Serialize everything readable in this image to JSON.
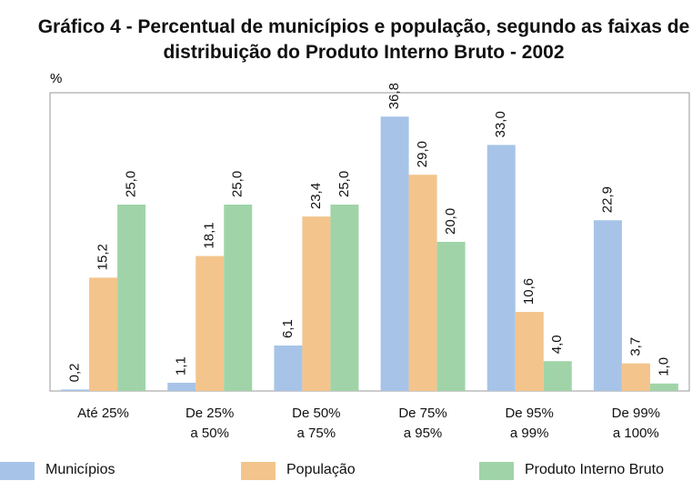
{
  "chart_data": {
    "type": "bar",
    "title": "Gráfico 4 - Percentual de municípios e população, segundo as faixas de distribuição do Produto Interno Bruto - 2002",
    "y_label": "%",
    "categories": [
      "Até 25%",
      "De 25%\na 50%",
      "De 50%\na 75%",
      "De 75%\na 95%",
      "De 95%\na 99%",
      "De 99%\na 100%"
    ],
    "series": [
      {
        "name": "Municípios",
        "color": "#a7c4e8",
        "values": [
          0.2,
          1.1,
          6.1,
          36.8,
          33.0,
          22.9
        ],
        "value_labels": [
          "0,2",
          "1,1",
          "6,1",
          "36,8",
          "33,0",
          "22,9"
        ]
      },
      {
        "name": "População",
        "color": "#f3c48c",
        "values": [
          15.2,
          18.1,
          23.4,
          29.0,
          10.6,
          3.7
        ],
        "value_labels": [
          "15,2",
          "18,1",
          "23,4",
          "29,0",
          "10,6",
          "3,7"
        ]
      },
      {
        "name": "Produto Interno Bruto",
        "color": "#a0d4a8",
        "values": [
          25.0,
          25.0,
          25.0,
          20.0,
          4.0,
          1.0
        ],
        "value_labels": [
          "25,0",
          "25,0",
          "25,0",
          "20,0",
          "4,0",
          "1,0"
        ]
      }
    ],
    "ylim": [
      0,
      40
    ]
  }
}
